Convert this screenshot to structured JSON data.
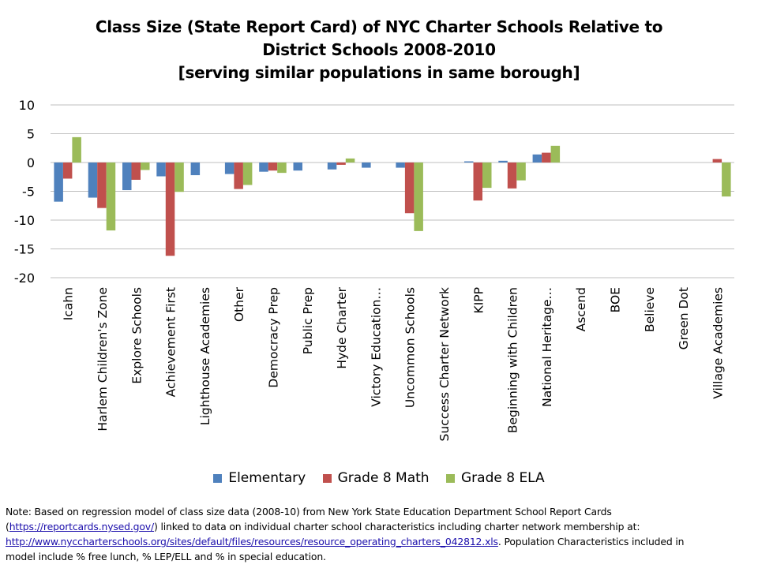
{
  "chart_data": {
    "type": "bar",
    "title_lines": [
      "Class Size (State Report Card) of NYC Charter Schools Relative to",
      "District Schools 2008-2010",
      "[serving similar populations in same borough]"
    ],
    "categories": [
      "Icahn",
      "Harlem Children's Zone",
      "Explore Schools",
      "Achievement First",
      "Lighthouse Academies",
      "Other",
      "Democracy Prep",
      "Public Prep",
      "Hyde Charter",
      "Victory Education…",
      "Uncommon Schools",
      "Success Charter Network",
      "KIPP",
      "Beginning with Children",
      "National Heritage…",
      "Ascend",
      "BOE",
      "Believe",
      "Green Dot",
      "Village Academies"
    ],
    "series": [
      {
        "name": "Elementary",
        "color": "#4F81BD",
        "values": [
          -6.8,
          -6.1,
          -4.8,
          -2.4,
          -2.2,
          -2.0,
          -1.6,
          -1.4,
          -1.2,
          -0.9,
          -0.9,
          null,
          0.2,
          0.3,
          1.4,
          null,
          null,
          null,
          null,
          null
        ]
      },
      {
        "name": "Grade 8 Math",
        "color": "#C0504D",
        "values": [
          -2.8,
          -7.9,
          -3.0,
          -16.2,
          null,
          -4.6,
          -1.4,
          null,
          -0.4,
          null,
          -8.8,
          null,
          -6.6,
          -4.5,
          1.7,
          null,
          null,
          null,
          null,
          0.6
        ]
      },
      {
        "name": "Grade 8 ELA",
        "color": "#9BBB59",
        "values": [
          4.4,
          -11.8,
          -1.3,
          -5.1,
          null,
          -3.9,
          -1.8,
          null,
          0.7,
          null,
          -11.9,
          null,
          -4.4,
          -3.1,
          2.9,
          null,
          null,
          null,
          null,
          -5.9
        ]
      }
    ],
    "ylim": [
      -20,
      10
    ],
    "yticks": [
      10,
      5,
      0,
      -5,
      -10,
      -15,
      -20
    ],
    "grid": true,
    "legend_position": "bottom",
    "xlabel": "",
    "ylabel": ""
  },
  "note": {
    "line1": "Note: Based on regression model of class size data (2008-10) from New York State Education Department School Report Cards",
    "line2_prefix": "(",
    "line2_link": "https://reportcards.nysed.gov/",
    "line2_suffix": ")  linked to data on individual charter school characteristics including charter network membership  at:",
    "line3_link": "http://www.nyccharterschools.org/sites/default/files/resources/resource_operating_charters_042812.xls",
    "line3_suffix": ". Population Characteristics included in",
    "line4": "model include % free lunch, % LEP/ELL and % in special education."
  }
}
